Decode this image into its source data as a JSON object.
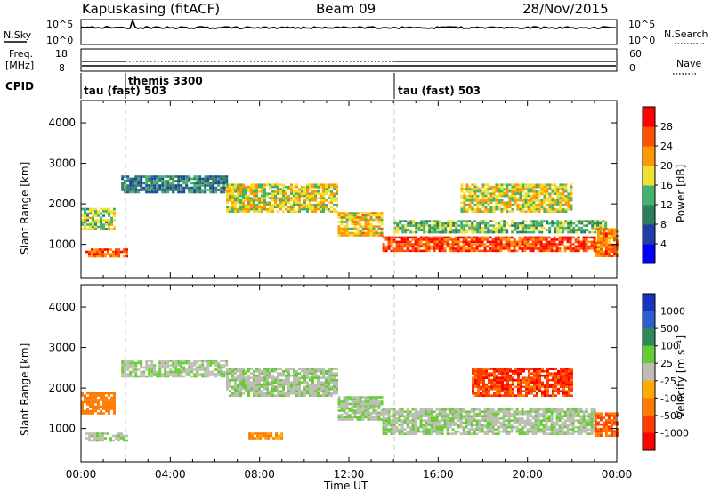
{
  "header": {
    "station": "Kapuskasing (fitACF)",
    "beam": "Beam 09",
    "date": "28/Nov/2015"
  },
  "strips": {
    "nsky": {
      "left_label": "N.Sky",
      "tick_high": "10^5",
      "tick_low": "10^0",
      "right_label": "N.Search",
      "right_tick_high": "10^5",
      "right_tick_low": "10^0"
    },
    "freq": {
      "left_label_line1": "Freq.",
      "left_label_line2": "[MHz]",
      "tick_high": "18",
      "tick_low": "8",
      "right_label": "Nave",
      "right_tick_high": "60",
      "right_tick_low": "0"
    },
    "cpid": {
      "label": "CPID",
      "programs": [
        "tau (fast) 503",
        "themis 3300",
        "tau (fast) 503"
      ]
    }
  },
  "colors": {
    "power_scale": [
      "#0000ff",
      "#1f3fa8",
      "#2e7d5a",
      "#45b26b",
      "#f0e030",
      "#ff9900",
      "#ff5000",
      "#ff0000"
    ],
    "velocity_scale": [
      "#1a33c0",
      "#2a5fd0",
      "#2e8b57",
      "#66cc33",
      "#bdbdb5",
      "#ffaa00",
      "#ff7a00",
      "#ff3b00",
      "#ff0000"
    ],
    "ground_scatter": "#bdbdb5"
  },
  "chart_data": [
    {
      "type": "heatmap",
      "title": "Power",
      "xlabel": "",
      "ylabel": "Slant Range [km]",
      "xlim": [
        "00:00",
        "24:00"
      ],
      "ylim": [
        180,
        4550
      ],
      "yticks": [
        "1000",
        "2000",
        "3000",
        "4000"
      ],
      "colorbar": {
        "label": "Power [dB]",
        "ticks": [
          "4",
          "8",
          "12",
          "16",
          "20",
          "24",
          "28"
        ],
        "range": [
          0,
          32
        ]
      },
      "bands": [
        {
          "t0": 0.2,
          "t1": 2.0,
          "r_lo": 700,
          "r_hi": 900,
          "value": 26
        },
        {
          "t0": 0.0,
          "t1": 1.5,
          "r_lo": 1400,
          "r_hi": 1900,
          "value": 16
        },
        {
          "t0": 1.8,
          "t1": 6.5,
          "r_lo": 2300,
          "r_hi": 2700,
          "value": 10
        },
        {
          "t0": 6.5,
          "t1": 11.5,
          "r_lo": 1800,
          "r_hi": 2500,
          "value": 18
        },
        {
          "t0": 11.5,
          "t1": 13.5,
          "r_lo": 1200,
          "r_hi": 1800,
          "value": 20
        },
        {
          "t0": 13.5,
          "t1": 23.0,
          "r_lo": 850,
          "r_hi": 1200,
          "value": 27
        },
        {
          "t0": 14.0,
          "t1": 23.5,
          "r_lo": 1300,
          "r_hi": 1600,
          "value": 14
        },
        {
          "t0": 17.0,
          "t1": 22.0,
          "r_lo": 1800,
          "r_hi": 2500,
          "value": 18
        },
        {
          "t0": 23.0,
          "t1": 24.0,
          "r_lo": 700,
          "r_hi": 1400,
          "value": 24
        }
      ]
    },
    {
      "type": "heatmap",
      "title": "Velocity",
      "xlabel": "Time UT",
      "ylabel": "Slant Range [km]",
      "xlim": [
        "00:00",
        "24:00"
      ],
      "ylim": [
        180,
        4550
      ],
      "xticks": [
        "00:00",
        "04:00",
        "08:00",
        "12:00",
        "16:00",
        "20:00",
        "00:00"
      ],
      "yticks": [
        "1000",
        "2000",
        "3000",
        "4000"
      ],
      "colorbar": {
        "label": "Velocity [m s⁻¹]",
        "ticks": [
          "1000",
          "500",
          "100",
          "25",
          "-25",
          "-100",
          "-500",
          "-1000"
        ]
      },
      "bands": [
        {
          "t0": 0.2,
          "t1": 2.0,
          "r_lo": 700,
          "r_hi": 900,
          "value": 0
        },
        {
          "t0": 0.0,
          "t1": 1.5,
          "r_lo": 1400,
          "r_hi": 1900,
          "value": -200
        },
        {
          "t0": 1.8,
          "t1": 6.5,
          "r_lo": 2300,
          "r_hi": 2700,
          "value": 0
        },
        {
          "t0": 6.5,
          "t1": 11.5,
          "r_lo": 1800,
          "r_hi": 2500,
          "value": 0
        },
        {
          "t0": 7.5,
          "t1": 9.0,
          "r_lo": 750,
          "r_hi": 900,
          "value": -150
        },
        {
          "t0": 11.5,
          "t1": 13.5,
          "r_lo": 1200,
          "r_hi": 1800,
          "value": 0
        },
        {
          "t0": 13.5,
          "t1": 23.0,
          "r_lo": 850,
          "r_hi": 1500,
          "value": 0
        },
        {
          "t0": 17.5,
          "t1": 22.0,
          "r_lo": 1800,
          "r_hi": 2500,
          "value": -400
        },
        {
          "t0": 23.0,
          "t1": 24.0,
          "r_lo": 800,
          "r_hi": 1400,
          "value": -300
        }
      ]
    }
  ]
}
